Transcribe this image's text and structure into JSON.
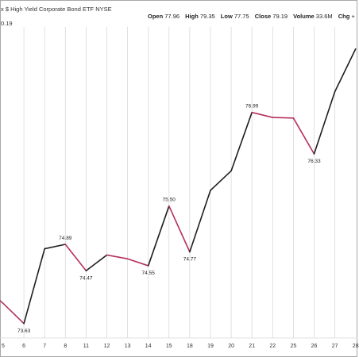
{
  "header": {
    "title": "x $ High Yield Corporate Bond ETF  NYSE",
    "subtitle": "0.19",
    "stats": [
      {
        "label": "Open",
        "value": "77.96"
      },
      {
        "label": "High",
        "value": "79.35"
      },
      {
        "label": "Low",
        "value": "77.75"
      },
      {
        "label": "Close",
        "value": "79.19"
      },
      {
        "label": "Volume",
        "value": "33.6M"
      },
      {
        "label": "Chg",
        "value": "+"
      }
    ]
  },
  "colors": {
    "up": "#1e1e1e",
    "down": "#b5305a",
    "grid": "#d9d9d9",
    "frame": "#a8a8a8"
  },
  "chart_data": {
    "type": "line",
    "title": "",
    "xlabel": "",
    "ylabel": "",
    "x": [
      "5",
      "6",
      "7",
      "8",
      "11",
      "12",
      "13",
      "14",
      "15",
      "18",
      "19",
      "20",
      "21",
      "22",
      "25",
      "26",
      "27",
      "28"
    ],
    "values": [
      73.95,
      73.63,
      74.82,
      74.89,
      74.47,
      74.72,
      74.66,
      74.55,
      75.5,
      74.77,
      75.75,
      76.06,
      76.99,
      76.91,
      76.9,
      76.33,
      77.32,
      78.0
    ],
    "data_labels": [
      {
        "x": "6",
        "text": "73.63"
      },
      {
        "x": "8",
        "text": "74.89"
      },
      {
        "x": "11",
        "text": "74.47"
      },
      {
        "x": "14",
        "text": "74.55"
      },
      {
        "x": "15",
        "text": "75.50"
      },
      {
        "x": "18",
        "text": "74.77"
      },
      {
        "x": "21",
        "text": "76.99"
      },
      {
        "x": "26",
        "text": "76.33"
      }
    ],
    "ylim": [
      73.4,
      78.35
    ],
    "grid": true,
    "legend": "none"
  }
}
